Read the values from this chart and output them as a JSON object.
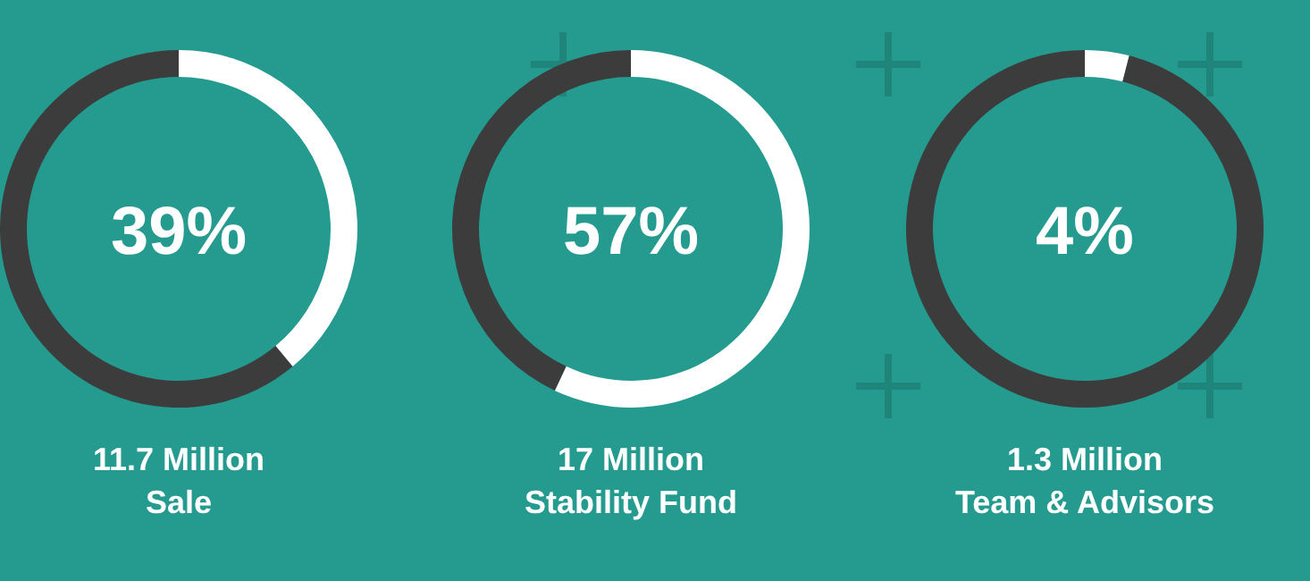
{
  "chart_data": [
    {
      "type": "donut",
      "title": "11.7 Million",
      "subtitle": "Sale",
      "categories": [
        null,
        null
      ],
      "values": [
        39,
        61
      ],
      "colors": [
        "#ffffff",
        "#3c3c3c"
      ],
      "annotations": [
        "39%"
      ]
    },
    {
      "type": "donut",
      "title": "17 Million",
      "subtitle": "Stability Fund",
      "categories": [
        null,
        null
      ],
      "values": [
        57,
        43
      ],
      "colors": [
        "#ffffff",
        "#3c3c3c"
      ],
      "annotations": [
        "57%"
      ]
    },
    {
      "type": "donut",
      "title": "1.3 Million",
      "subtitle": "Team & Advisors",
      "categories": [
        null,
        null
      ],
      "values": [
        4,
        96
      ],
      "colors": [
        "#ffffff",
        "#3c3c3c"
      ],
      "annotations": [
        "4%"
      ]
    }
  ]
}
